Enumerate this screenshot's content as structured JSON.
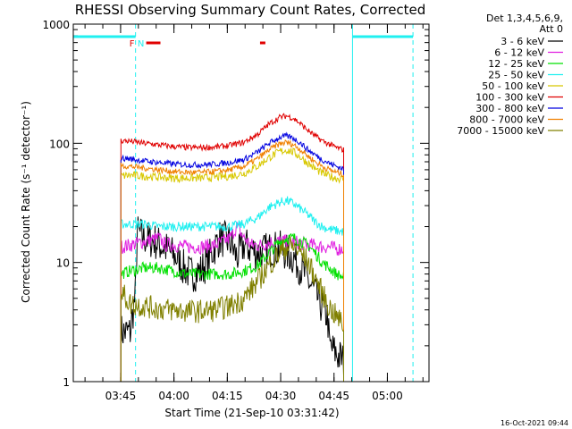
{
  "chart_data": {
    "type": "line",
    "title": "RHESSI Observing Summary Count Rates, Corrected",
    "xlabel": "Start Time (21-Sep-10 03:31:42)",
    "ylabel": "Corrected Count Rate (s⁻¹ detector⁻¹)",
    "x_units": "minutes after 03:31:42",
    "xlim": [
      0,
      100
    ],
    "ylim": [
      1,
      1000
    ],
    "yscale": "log",
    "grid": false,
    "x_ticks": [
      {
        "label": "03:45",
        "x": 13.3
      },
      {
        "label": "04:00",
        "x": 28.3
      },
      {
        "label": "04:15",
        "x": 43.3
      },
      {
        "label": "04:30",
        "x": 58.3
      },
      {
        "label": "04:45",
        "x": 73.3
      },
      {
        "label": "05:00",
        "x": 88.3
      }
    ],
    "y_ticks": [
      {
        "label": "1",
        "v": 1
      },
      {
        "label": "10",
        "v": 10
      },
      {
        "label": "100",
        "v": 100
      },
      {
        "label": "1000",
        "v": 1000
      }
    ],
    "legend": {
      "placement": "right",
      "header": [
        "Det 1,3,4,5,6,9,",
        "Att 0"
      ],
      "entries": [
        {
          "label": "3 - 6 keV",
          "color": "#000000"
        },
        {
          "label": "6 - 12 keV",
          "color": "#e020e0"
        },
        {
          "label": "12 - 25 keV",
          "color": "#00e000"
        },
        {
          "label": "25 - 50 keV",
          "color": "#20f0f0"
        },
        {
          "label": "50 - 100 keV",
          "color": "#d8c800"
        },
        {
          "label": "100 - 300 keV",
          "color": "#e00000"
        },
        {
          "label": "300 - 800 keV",
          "color": "#0000e0"
        },
        {
          "label": "800 - 7000 keV",
          "color": "#f08000"
        },
        {
          "label": "7000 - 15000 keV",
          "color": "#808000"
        }
      ]
    },
    "series": [
      {
        "name": "3 - 6 keV",
        "color": "#000000",
        "x": [
          13.4,
          14,
          16,
          17.5,
          18,
          20,
          23,
          26,
          29,
          31,
          33,
          36,
          39,
          41,
          44,
          46,
          48,
          50,
          52,
          54,
          56,
          58,
          60,
          62,
          64,
          66,
          68,
          70,
          71.5,
          72,
          74,
          76
        ],
        "values": [
          2.6,
          2.6,
          2.6,
          5.5,
          18,
          16,
          15,
          13,
          11,
          9,
          8,
          8.5,
          12,
          16,
          15,
          11,
          14,
          13,
          12,
          12.5,
          13,
          13,
          12,
          11,
          9,
          7,
          5.5,
          4.2,
          3.5,
          2,
          1.7,
          1.5
        ]
      },
      {
        "name": "6 - 12 keV",
        "color": "#e020e0",
        "x": [
          13.4,
          16,
          20,
          24,
          26,
          28,
          32,
          36,
          40,
          44,
          46,
          48,
          50,
          53,
          56,
          58,
          60,
          62,
          64,
          66,
          68,
          70,
          72,
          74,
          76
        ],
        "values": [
          13.5,
          14,
          15,
          16,
          14,
          14,
          13.5,
          13.5,
          14,
          16,
          20,
          16,
          14,
          14,
          15,
          15,
          15,
          15,
          14.5,
          14,
          14,
          13.5,
          13.5,
          13,
          13
        ]
      },
      {
        "name": "12 - 25 keV",
        "color": "#00e000",
        "x": [
          13.4,
          16,
          20,
          24,
          28,
          32,
          36,
          40,
          44,
          48,
          52,
          55,
          58,
          60,
          62,
          64,
          66,
          68,
          70,
          72,
          74,
          76
        ],
        "values": [
          8,
          8.5,
          9,
          9,
          8.5,
          8,
          8,
          8,
          8,
          8.5,
          9.5,
          12,
          15,
          16,
          16,
          15,
          14,
          12,
          10,
          9,
          8,
          7.5
        ]
      },
      {
        "name": "25 - 50 keV",
        "color": "#20f0f0",
        "x": [
          13.4,
          16,
          20,
          24,
          28,
          32,
          36,
          40,
          44,
          48,
          52,
          55,
          58,
          60,
          62,
          64,
          66,
          68,
          70,
          72,
          74,
          76
        ],
        "values": [
          21,
          21,
          21,
          20,
          20,
          20,
          20,
          20,
          20,
          21,
          24,
          29,
          32,
          33,
          31,
          28,
          25,
          22,
          20,
          19,
          18.5,
          18
        ]
      },
      {
        "name": "50 - 100 keV",
        "color": "#d8c800",
        "x": [
          13.4,
          16,
          20,
          24,
          28,
          32,
          36,
          40,
          44,
          48,
          52,
          55,
          58,
          60,
          62,
          64,
          66,
          68,
          70,
          72,
          74,
          76
        ],
        "values": [
          53,
          54,
          53,
          52,
          51,
          51,
          51,
          52,
          53,
          56,
          65,
          76,
          85,
          88,
          84,
          76,
          68,
          61,
          56,
          53,
          51,
          50
        ]
      },
      {
        "name": "100 - 300 keV",
        "color": "#e00000",
        "x": [
          13.4,
          16,
          20,
          24,
          28,
          32,
          36,
          40,
          44,
          48,
          52,
          55,
          58,
          60,
          62,
          64,
          66,
          68,
          70,
          72,
          74,
          76
        ],
        "values": [
          105,
          104,
          100,
          97,
          94,
          92,
          92,
          93,
          96,
          102,
          120,
          145,
          165,
          170,
          162,
          145,
          128,
          115,
          105,
          98,
          92,
          88
        ]
      },
      {
        "name": "300 - 800 keV",
        "color": "#0000e0",
        "x": [
          13.4,
          16,
          20,
          24,
          28,
          32,
          36,
          40,
          44,
          48,
          52,
          55,
          58,
          60,
          62,
          64,
          66,
          68,
          70,
          72,
          74,
          76
        ],
        "values": [
          75,
          74,
          71,
          69,
          67,
          66,
          66,
          67,
          69,
          73,
          85,
          100,
          112,
          115,
          110,
          100,
          88,
          80,
          73,
          68,
          64,
          61
        ]
      },
      {
        "name": "800 - 7000 keV",
        "color": "#f08000",
        "x": [
          13.4,
          16,
          20,
          24,
          28,
          32,
          36,
          40,
          44,
          48,
          52,
          55,
          58,
          60,
          62,
          64,
          66,
          68,
          70,
          72,
          74,
          76
        ],
        "values": [
          65,
          64,
          62,
          60,
          58,
          57,
          57,
          58,
          60,
          64,
          75,
          88,
          99,
          102,
          97,
          88,
          78,
          70,
          64,
          60,
          57,
          55
        ]
      },
      {
        "name": "7000 - 15000 keV",
        "color": "#808000",
        "x": [
          13.4,
          14.5,
          16,
          20,
          24,
          28,
          32,
          36,
          40,
          44,
          48,
          52,
          55,
          58,
          60,
          62,
          64,
          66,
          68,
          70,
          72,
          74,
          76
        ],
        "values": [
          5.5,
          5.2,
          4.5,
          4.3,
          4.1,
          4,
          3.9,
          3.9,
          4,
          4.3,
          5,
          7,
          9.5,
          12,
          13.5,
          13.5,
          12,
          10,
          7.5,
          5.5,
          4.2,
          3.5,
          3
        ]
      }
    ],
    "annotations": {
      "status_line_color": "#20f0f0",
      "flag_color": "#e00000",
      "night_intervals": [
        [
          0,
          17.5
        ],
        [
          78.5,
          95.5
        ]
      ],
      "dashed_markers": [
        17.5,
        95.5
      ],
      "solid_markers": [
        78.5
      ],
      "labels": [
        {
          "text": "F",
          "x": 16.5
        },
        {
          "text": "N",
          "x": 19
        }
      ],
      "flare_intervals": [
        [
          20.5,
          24.5
        ],
        [
          52.5,
          54
        ]
      ]
    },
    "footer_timestamp": "16-Oct-2021 09:44"
  }
}
